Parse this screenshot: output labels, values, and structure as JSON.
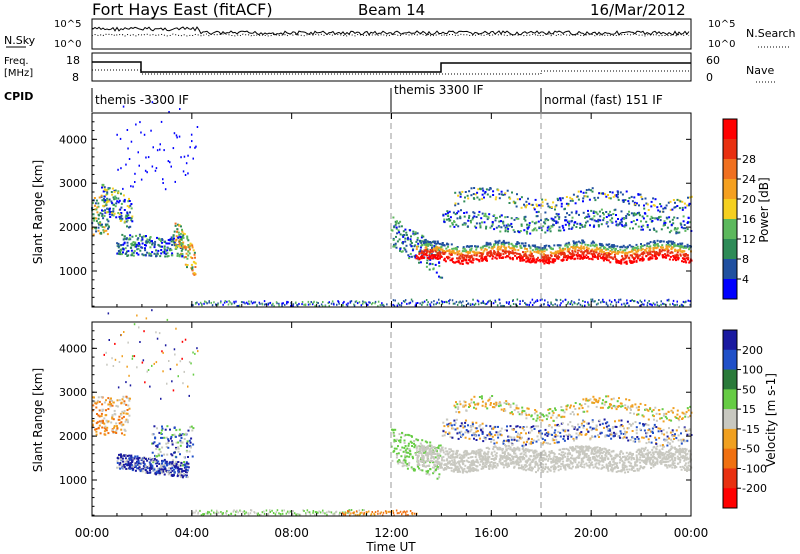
{
  "header": {
    "station": "Fort Hays East (fitACF)",
    "beam": "Beam 14",
    "date": "16/Mar/2012"
  },
  "noise_panel": {
    "left_label": "N.Sky",
    "right_label": "N.Search",
    "y_ticks": [
      "10^5",
      "10^0"
    ]
  },
  "freq_panel": {
    "left_label_1": "Freq.",
    "left_label_2": "[MHz]",
    "left_ticks": [
      "18",
      "8"
    ],
    "right_ticks": [
      "60",
      "0"
    ],
    "right_label": "Nave"
  },
  "cpid": {
    "label": "CPID",
    "segments": [
      {
        "name": "themis -3300 IF",
        "start_hour": 0
      },
      {
        "name": "themis 3300 IF",
        "start_hour": 12
      },
      {
        "name": "normal (fast) 151 IF",
        "start_hour": 18
      }
    ]
  },
  "chart_data": [
    {
      "type": "heatmap",
      "title": "",
      "ylabel": "Slant Range [km]",
      "ylim": [
        180,
        4600
      ],
      "y_ticks": [
        "1000",
        "2000",
        "3000",
        "4000"
      ],
      "xlim": [
        0,
        24
      ],
      "colorbar": {
        "label": "Power [dB]",
        "ticks": [
          "4",
          "8",
          "12",
          "16",
          "20",
          "24",
          "28"
        ],
        "colors": [
          "#0000ff",
          "#2050a0",
          "#2e8b57",
          "#5cb85c",
          "#f5d020",
          "#f5a020",
          "#f07020",
          "#e83010",
          "#ff0000"
        ]
      }
    },
    {
      "type": "heatmap",
      "title": "",
      "ylabel": "Slant Range [km]",
      "ylim": [
        180,
        4600
      ],
      "y_ticks": [
        "1000",
        "2000",
        "3000",
        "4000"
      ],
      "xlim": [
        0,
        24
      ],
      "x_ticks": [
        "00:00",
        "04:00",
        "08:00",
        "12:00",
        "16:00",
        "20:00",
        "00:00"
      ],
      "xlabel": "Time UT",
      "colorbar": {
        "label": "Velocity [m s-1]",
        "ticks": [
          "200",
          "100",
          "50",
          "15",
          "-15",
          "-50",
          "-100",
          "-200"
        ],
        "colors": [
          "#1a1aa0",
          "#2050c8",
          "#2a7a3a",
          "#66cc44",
          "#c8c8c0",
          "#f0a020",
          "#f07010",
          "#e83010",
          "#ff0000"
        ]
      }
    }
  ]
}
